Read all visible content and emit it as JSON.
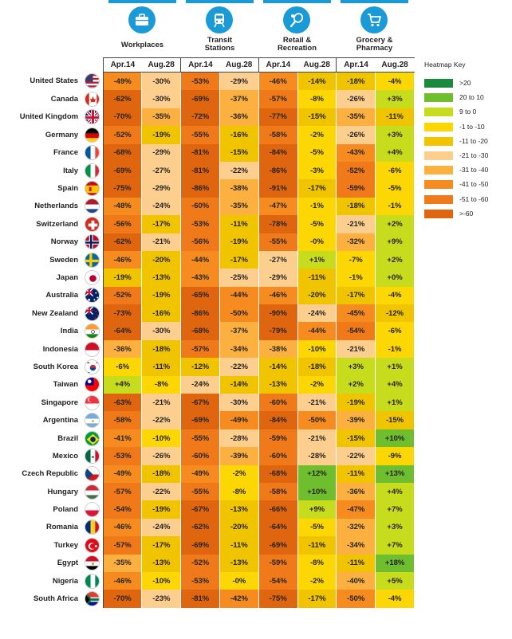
{
  "categories": [
    {
      "label": [
        "Workplaces"
      ],
      "icon": "briefcase-icon"
    },
    {
      "label": [
        "Transit",
        "Stations"
      ],
      "icon": "train-icon"
    },
    {
      "label": [
        "Retail &",
        "Recreation"
      ],
      "icon": "tennis-racket-icon"
    },
    {
      "label": [
        "Grocery &",
        "Pharmacy"
      ],
      "icon": "shopping-cart-icon"
    }
  ],
  "periods": [
    "Apr.14",
    "Aug.28"
  ],
  "key": {
    "title": "Heatmap Key",
    "bins": [
      {
        "label": ">20",
        "color": "#1a8a3c"
      },
      {
        "label": "20 to 10",
        "color": "#6fbe2e"
      },
      {
        "label": "9 to 0",
        "color": "#c8dc1e"
      },
      {
        "label": "-1 to -10",
        "color": "#fcd703"
      },
      {
        "label": "-11 to -20",
        "color": "#f1c400"
      },
      {
        "label": "-21 to -30",
        "color": "#fdcf8e"
      },
      {
        "label": "-31 to -40",
        "color": "#fbb040"
      },
      {
        "label": "-41 to -50",
        "color": "#f68c1f"
      },
      {
        "label": "-51 to -60",
        "color": "#f07a1a"
      },
      {
        "label": ">-60",
        "color": "#e0650f"
      }
    ]
  },
  "chart_data": {
    "type": "table",
    "columns": [
      "Workplaces Apr.14",
      "Workplaces Aug.28",
      "Transit Stations Apr.14",
      "Transit Stations Aug.28",
      "Retail & Recreation Apr.14",
      "Retail & Recreation Aug.28",
      "Grocery & Pharmacy Apr.14",
      "Grocery & Pharmacy Aug.28"
    ],
    "rows": [
      {
        "country": "United States",
        "flag": "flag-usa",
        "values": [
          "-49%",
          "-30%",
          "-53%",
          "-29%",
          "-46%",
          "-14%",
          "-18%",
          "-4%"
        ]
      },
      {
        "country": "Canada",
        "flag": "flag-canada",
        "values": [
          "-62%",
          "-30%",
          "-69%",
          "-37%",
          "-57%",
          "-8%",
          "-26%",
          "+3%"
        ]
      },
      {
        "country": "United Kingdom",
        "flag": "flag-uk",
        "values": [
          "-70%",
          "-35%",
          "-72%",
          "-36%",
          "-77%",
          "-15%",
          "-35%",
          "-11%"
        ]
      },
      {
        "country": "Germany",
        "flag": "flag-germany",
        "values": [
          "-52%",
          "-19%",
          "-55%",
          "-16%",
          "-58%",
          "-2%",
          "-26%",
          "+3%"
        ]
      },
      {
        "country": "France",
        "flag": "flag-france",
        "values": [
          "-68%",
          "-29%",
          "-81%",
          "-15%",
          "-84%",
          "-5%",
          "-43%",
          "+4%"
        ]
      },
      {
        "country": "Italy",
        "flag": "flag-italy",
        "values": [
          "-69%",
          "-27%",
          "-81%",
          "-22%",
          "-86%",
          "-3%",
          "-52%",
          "-6%"
        ]
      },
      {
        "country": "Spain",
        "flag": "flag-spain",
        "values": [
          "-75%",
          "-29%",
          "-86%",
          "-38%",
          "-91%",
          "-17%",
          "-59%",
          "-5%"
        ]
      },
      {
        "country": "Netherlands",
        "flag": "flag-netherlands",
        "values": [
          "-48%",
          "-24%",
          "-60%",
          "-35%",
          "-47%",
          "-1%",
          "-18%",
          "-1%"
        ]
      },
      {
        "country": "Switzerland",
        "flag": "flag-switzerland",
        "values": [
          "-56%",
          "-17%",
          "-53%",
          "-11%",
          "-78%",
          "-5%",
          "-21%",
          "+2%"
        ]
      },
      {
        "country": "Norway",
        "flag": "flag-norway",
        "values": [
          "-62%",
          "-21%",
          "-56%",
          "-19%",
          "-55%",
          "-0%",
          "-32%",
          "+9%"
        ]
      },
      {
        "country": "Sweden",
        "flag": "flag-sweden",
        "values": [
          "-46%",
          "-20%",
          "-44%",
          "-17%",
          "-27%",
          "+1%",
          "-7%",
          "+2%"
        ]
      },
      {
        "country": "Japan",
        "flag": "flag-japan",
        "values": [
          "-19%",
          "-13%",
          "-43%",
          "-25%",
          "-29%",
          "-11%",
          "-1%",
          "+0%"
        ]
      },
      {
        "country": "Australia",
        "flag": "flag-australia",
        "values": [
          "-52%",
          "-19%",
          "-65%",
          "-44%",
          "-46%",
          "-20%",
          "-17%",
          "-4%"
        ]
      },
      {
        "country": "New Zealand",
        "flag": "flag-new-zealand",
        "values": [
          "-73%",
          "-16%",
          "-86%",
          "-50%",
          "-90%",
          "-24%",
          "-45%",
          "-12%"
        ]
      },
      {
        "country": "India",
        "flag": "flag-india",
        "values": [
          "-64%",
          "-30%",
          "-68%",
          "-37%",
          "-79%",
          "-44%",
          "-54%",
          "-6%"
        ]
      },
      {
        "country": "Indonesia",
        "flag": "flag-indonesia",
        "values": [
          "-36%",
          "-18%",
          "-57%",
          "-34%",
          "-38%",
          "-10%",
          "-21%",
          "-1%"
        ]
      },
      {
        "country": "South Korea",
        "flag": "flag-south-korea",
        "values": [
          "-6%",
          "-11%",
          "-12%",
          "-22%",
          "-14%",
          "-18%",
          "+3%",
          "+1%"
        ]
      },
      {
        "country": "Taiwan",
        "flag": "flag-taiwan",
        "values": [
          "+4%",
          "-8%",
          "-24%",
          "-14%",
          "-13%",
          "-2%",
          "+2%",
          "+4%"
        ]
      },
      {
        "country": "Singapore",
        "flag": "flag-singapore",
        "values": [
          "-63%",
          "-21%",
          "-67%",
          "-30%",
          "-60%",
          "-21%",
          "-19%",
          "+1%"
        ]
      },
      {
        "country": "Argentina",
        "flag": "flag-argentina",
        "values": [
          "-58%",
          "-22%",
          "-69%",
          "-49%",
          "-84%",
          "-50%",
          "-39%",
          "-15%"
        ]
      },
      {
        "country": "Brazil",
        "flag": "flag-brazil",
        "values": [
          "-41%",
          "-10%",
          "-55%",
          "-28%",
          "-59%",
          "-21%",
          "-15%",
          "+10%"
        ]
      },
      {
        "country": "Mexico",
        "flag": "flag-mexico",
        "values": [
          "-53%",
          "-26%",
          "-60%",
          "-39%",
          "-60%",
          "-28%",
          "-22%",
          "-9%"
        ]
      },
      {
        "country": "Czech Republic",
        "flag": "flag-czech-republic",
        "values": [
          "-49%",
          "-18%",
          "-49%",
          "-2%",
          "-68%",
          "+12%",
          "-11%",
          "+13%"
        ]
      },
      {
        "country": "Hungary",
        "flag": "flag-hungary",
        "values": [
          "-57%",
          "-22%",
          "-55%",
          "-8%",
          "-58%",
          "+10%",
          "-36%",
          "+4%"
        ]
      },
      {
        "country": "Poland",
        "flag": "flag-poland",
        "values": [
          "-54%",
          "-19%",
          "-67%",
          "-13%",
          "-66%",
          "+9%",
          "-47%",
          "+7%"
        ]
      },
      {
        "country": "Romania",
        "flag": "flag-romania",
        "values": [
          "-46%",
          "-24%",
          "-62%",
          "-20%",
          "-64%",
          "-5%",
          "-32%",
          "+3%"
        ]
      },
      {
        "country": "Turkey",
        "flag": "flag-turkey",
        "values": [
          "-57%",
          "-17%",
          "-69%",
          "-11%",
          "-69%",
          "-11%",
          "-34%",
          "+7%"
        ]
      },
      {
        "country": "Egypt",
        "flag": "flag-egypt",
        "values": [
          "-35%",
          "-13%",
          "-52%",
          "-13%",
          "-59%",
          "-8%",
          "-11%",
          "+18%"
        ]
      },
      {
        "country": "Nigeria",
        "flag": "flag-nigeria",
        "values": [
          "-46%",
          "-10%",
          "-53%",
          "-0%",
          "-54%",
          "-2%",
          "-40%",
          "+5%"
        ]
      },
      {
        "country": "South Africa",
        "flag": "flag-south-africa",
        "values": [
          "-70%",
          "-23%",
          "-81%",
          "-42%",
          "-75%",
          "-17%",
          "-50%",
          "-4%"
        ]
      }
    ]
  }
}
